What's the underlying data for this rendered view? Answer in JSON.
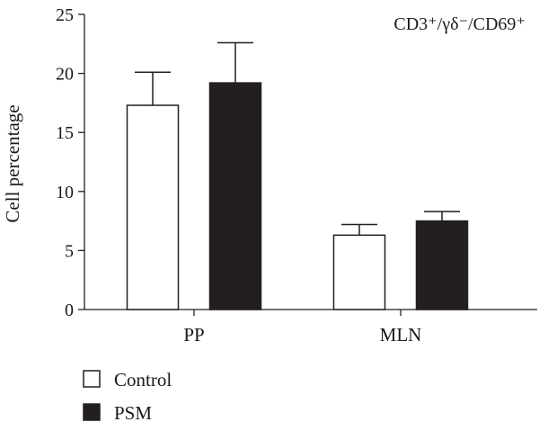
{
  "chart_data": {
    "type": "bar",
    "title": "CD3⁺/γδ⁻/CD69⁺",
    "ylabel": "Cell percentage",
    "xlabel": "",
    "ylim": [
      0,
      25
    ],
    "yticks": [
      0,
      5,
      10,
      15,
      20,
      25
    ],
    "categories": [
      "PP",
      "MLN"
    ],
    "series": [
      {
        "name": "Control",
        "values": [
          17.3,
          6.3
        ],
        "errors": [
          2.8,
          0.9
        ],
        "color": "#ffffff"
      },
      {
        "name": "PSM",
        "values": [
          19.2,
          7.5
        ],
        "errors": [
          3.4,
          0.8
        ],
        "color": "#231f20"
      }
    ],
    "legend_position": "bottom-left",
    "grid": false
  }
}
